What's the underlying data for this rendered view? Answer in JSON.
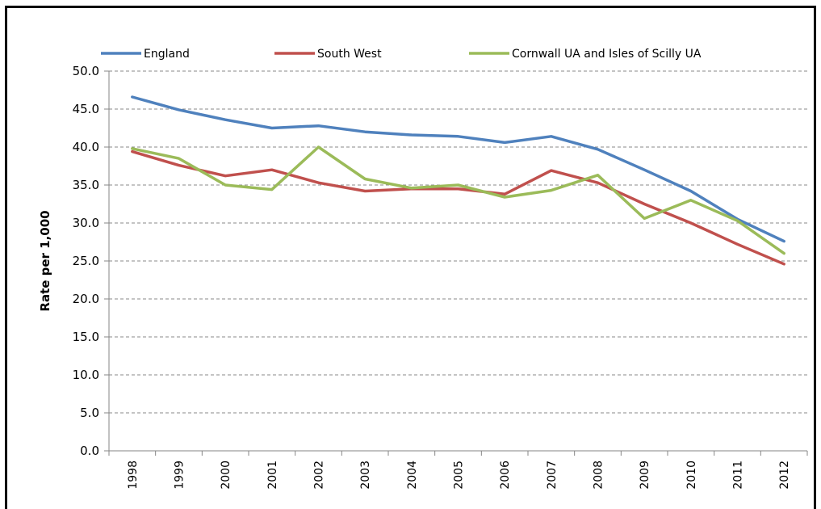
{
  "chart_data": {
    "type": "line",
    "title": "",
    "xlabel": "",
    "ylabel": "Rate per 1,000",
    "ylim": [
      0,
      50
    ],
    "yticks": [
      "0.0",
      "5.0",
      "10.0",
      "15.0",
      "20.0",
      "25.0",
      "30.0",
      "35.0",
      "40.0",
      "45.0",
      "50.0"
    ],
    "categories": [
      "1998",
      "1999",
      "2000",
      "2001",
      "2002",
      "2003",
      "2004",
      "2005",
      "2006",
      "2007",
      "2008",
      "2009",
      "2010",
      "2011",
      "2012"
    ],
    "grid": true,
    "legend_position": "top",
    "series": [
      {
        "name": "England",
        "color": "#4f81bd",
        "values": [
          46.6,
          44.9,
          43.6,
          42.5,
          42.8,
          42.0,
          41.6,
          41.4,
          40.6,
          41.4,
          39.7,
          37.0,
          34.2,
          30.5,
          27.6
        ]
      },
      {
        "name": "South West",
        "color": "#c0504d",
        "values": [
          39.4,
          37.6,
          36.2,
          37.0,
          35.3,
          34.2,
          34.5,
          34.5,
          33.8,
          36.9,
          35.3,
          32.5,
          30.0,
          27.2,
          24.6
        ]
      },
      {
        "name": "Cornwall UA and Isles of Scilly UA",
        "color": "#9bbb59",
        "values": [
          39.8,
          38.5,
          35.0,
          34.4,
          40.0,
          35.8,
          34.6,
          35.0,
          33.4,
          34.3,
          36.3,
          30.6,
          33.0,
          30.3,
          26.0
        ]
      }
    ]
  }
}
